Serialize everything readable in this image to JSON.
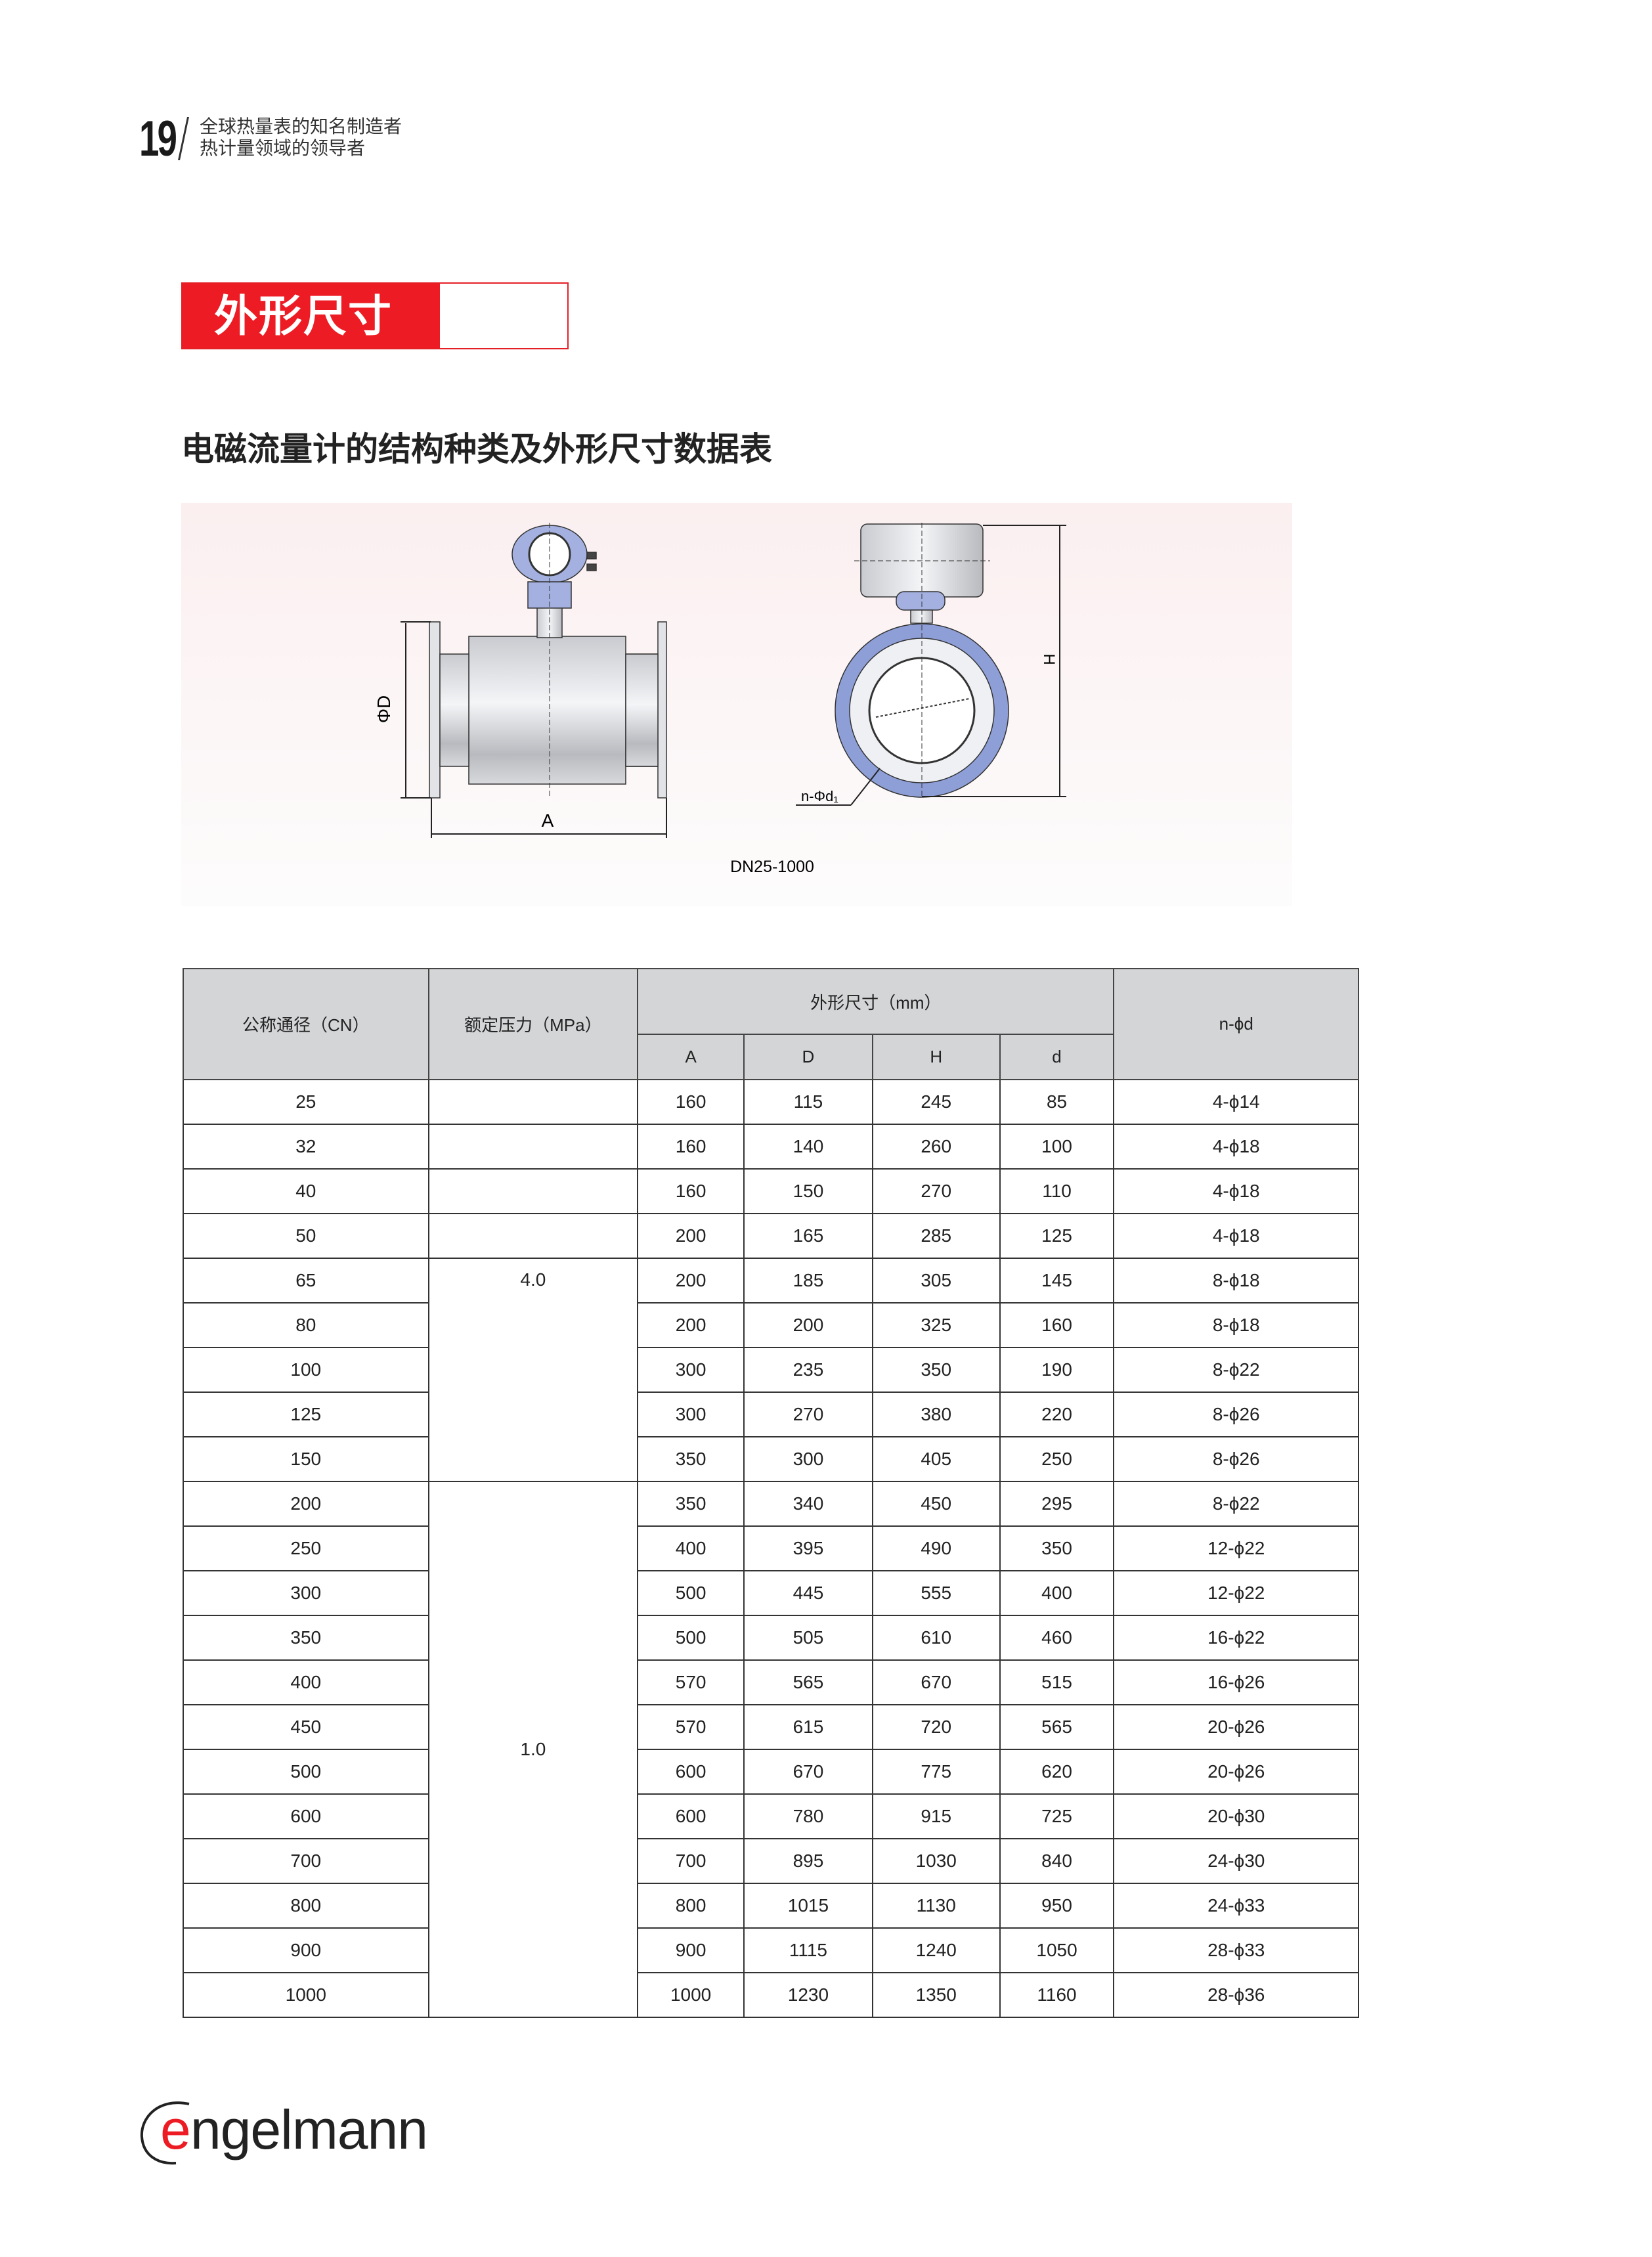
{
  "header": {
    "page_number": "19",
    "tagline_line1": "全球热量表的知名制造者",
    "tagline_line2": "热计量领域的领导者"
  },
  "section": {
    "title": "外形尺寸"
  },
  "subtitle": "电磁流量计的结构种类及外形尺寸数据表",
  "diagram": {
    "label_phiD": "ΦD",
    "label_A": "A",
    "label_H": "H",
    "label_holes": "n-Φd₁",
    "caption": "DN25-1000"
  },
  "table": {
    "headers": {
      "dn": "公称通径（CN）",
      "pressure": "额定压力（MPa）",
      "dims": "外形尺寸（mm）",
      "A": "A",
      "D": "D",
      "H": "H",
      "d": "d",
      "nphid": "n-ϕd"
    },
    "pressure_groups": [
      {
        "value": "",
        "rows": 4
      },
      {
        "value": "4.0",
        "rows": 5
      },
      {
        "value": "1.0",
        "rows": 12
      }
    ],
    "rows": [
      {
        "dn": "25",
        "A": "160",
        "D": "115",
        "H": "245",
        "d": "85",
        "n": "4-ϕ14"
      },
      {
        "dn": "32",
        "A": "160",
        "D": "140",
        "H": "260",
        "d": "100",
        "n": "4-ϕ18"
      },
      {
        "dn": "40",
        "A": "160",
        "D": "150",
        "H": "270",
        "d": "110",
        "n": "4-ϕ18"
      },
      {
        "dn": "50",
        "A": "200",
        "D": "165",
        "H": "285",
        "d": "125",
        "n": "4-ϕ18"
      },
      {
        "dn": "65",
        "A": "200",
        "D": "185",
        "H": "305",
        "d": "145",
        "n": "8-ϕ18"
      },
      {
        "dn": "80",
        "A": "200",
        "D": "200",
        "H": "325",
        "d": "160",
        "n": "8-ϕ18"
      },
      {
        "dn": "100",
        "A": "300",
        "D": "235",
        "H": "350",
        "d": "190",
        "n": "8-ϕ22"
      },
      {
        "dn": "125",
        "A": "300",
        "D": "270",
        "H": "380",
        "d": "220",
        "n": "8-ϕ26"
      },
      {
        "dn": "150",
        "A": "350",
        "D": "300",
        "H": "405",
        "d": "250",
        "n": "8-ϕ26"
      },
      {
        "dn": "200",
        "A": "350",
        "D": "340",
        "H": "450",
        "d": "295",
        "n": "8-ϕ22"
      },
      {
        "dn": "250",
        "A": "400",
        "D": "395",
        "H": "490",
        "d": "350",
        "n": "12-ϕ22"
      },
      {
        "dn": "300",
        "A": "500",
        "D": "445",
        "H": "555",
        "d": "400",
        "n": "12-ϕ22"
      },
      {
        "dn": "350",
        "A": "500",
        "D": "505",
        "H": "610",
        "d": "460",
        "n": "16-ϕ22"
      },
      {
        "dn": "400",
        "A": "570",
        "D": "565",
        "H": "670",
        "d": "515",
        "n": "16-ϕ26"
      },
      {
        "dn": "450",
        "A": "570",
        "D": "615",
        "H": "720",
        "d": "565",
        "n": "20-ϕ26"
      },
      {
        "dn": "500",
        "A": "600",
        "D": "670",
        "H": "775",
        "d": "620",
        "n": "20-ϕ26"
      },
      {
        "dn": "600",
        "A": "600",
        "D": "780",
        "H": "915",
        "d": "725",
        "n": "20-ϕ30"
      },
      {
        "dn": "700",
        "A": "700",
        "D": "895",
        "H": "1030",
        "d": "840",
        "n": "24-ϕ30"
      },
      {
        "dn": "800",
        "A": "800",
        "D": "1015",
        "H": "1130",
        "d": "950",
        "n": "24-ϕ33"
      },
      {
        "dn": "900",
        "A": "900",
        "D": "1115",
        "H": "1240",
        "d": "1050",
        "n": "28-ϕ33"
      },
      {
        "dn": "1000",
        "A": "1000",
        "D": "1230",
        "H": "1350",
        "d": "1160",
        "n": "28-ϕ36"
      }
    ]
  },
  "footer": {
    "logo_text": "engelmann"
  },
  "colors": {
    "brand_red": "#ed1c24",
    "header_gray": "#d4d5d7",
    "flange_blue": "#8e9fd8"
  }
}
